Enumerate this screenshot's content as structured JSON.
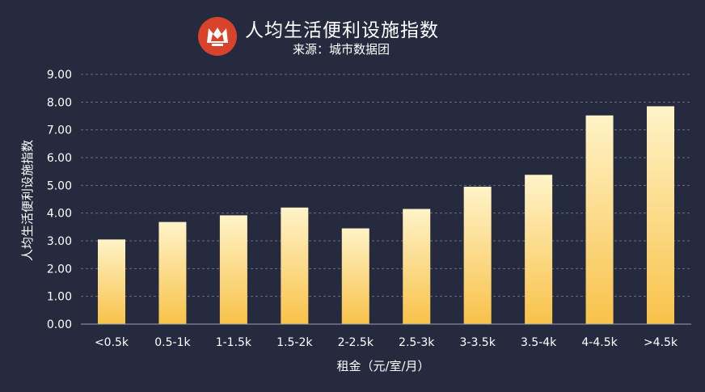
{
  "header": {
    "title": "人均生活便利设施指数",
    "subtitle": "来源：城市数据团",
    "logo_icon": "city-data-team-logo-icon"
  },
  "colors": {
    "background": "#262a3e",
    "bar_top": "#fff3c8",
    "bar_bottom": "#f8c24a",
    "grid": "#6b6f82",
    "text": "#ffffff",
    "logo": "#d9432b"
  },
  "chart_data": {
    "type": "bar",
    "title": "人均生活便利设施指数",
    "subtitle": "来源：城市数据团",
    "xlabel": "租金（元/室/月）",
    "ylabel": "人均生活便利设施指数",
    "categories": [
      "<0.5k",
      "0.5-1k",
      "1-1.5k",
      "1.5-2k",
      "2-2.5k",
      "2.5-3k",
      "3-3.5k",
      "3.5-4k",
      "4-4.5k",
      ">4.5k"
    ],
    "values": [
      3.05,
      3.68,
      3.92,
      4.2,
      3.45,
      4.15,
      4.95,
      5.38,
      7.52,
      7.85
    ],
    "ylim": [
      0,
      9
    ],
    "yticks": [
      "0.00",
      "1.00",
      "2.00",
      "3.00",
      "4.00",
      "5.00",
      "6.00",
      "7.00",
      "8.00",
      "9.00"
    ],
    "grid": true,
    "legend": "none"
  }
}
